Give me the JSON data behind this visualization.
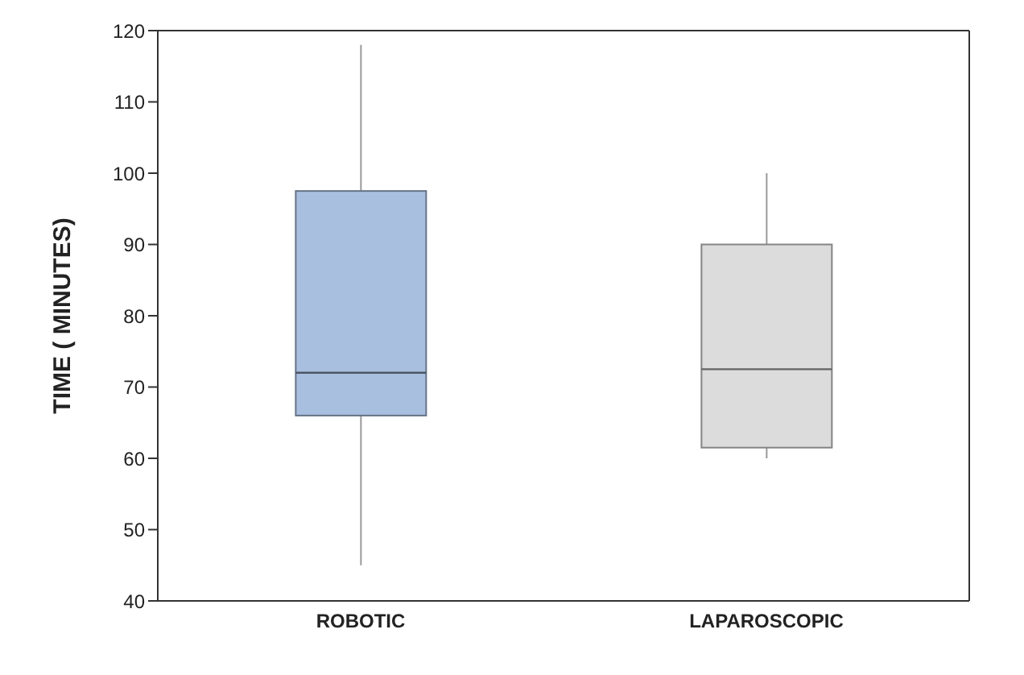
{
  "chart_data": {
    "type": "box",
    "ylabel": "TIME ( MINUTES)",
    "categories": [
      "ROBOTIC",
      "LAPAROSCOPIC"
    ],
    "boxes": [
      {
        "low": 45,
        "q1": 66,
        "median": 72,
        "q3": 97.5,
        "high": 118
      },
      {
        "low": 60,
        "q1": 61.5,
        "median": 72.5,
        "q3": 90,
        "high": 100
      }
    ],
    "colors": [
      "#a9bfe0",
      "#dcdcdc"
    ],
    "ylim": [
      40,
      120
    ],
    "yticks": [
      40,
      50,
      60,
      70,
      80,
      90,
      100,
      110,
      120
    ],
    "grid": false,
    "legend": false
  }
}
